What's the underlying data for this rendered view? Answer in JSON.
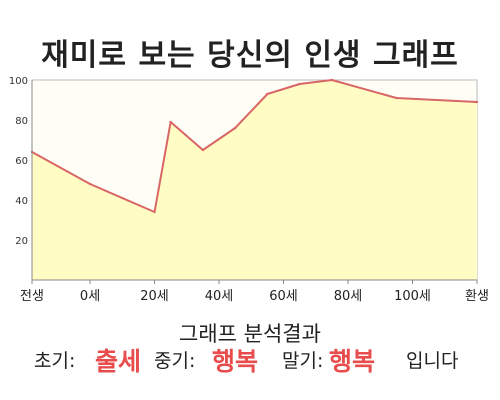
{
  "chart_data": {
    "type": "area",
    "title": "재미로 보는 당신의 인생 그래프",
    "xlabel": "",
    "ylabel": "",
    "x_tick_labels": [
      "전생",
      "0세",
      "20세",
      "40세",
      "60세",
      "80세",
      "100세",
      "환생"
    ],
    "y_ticks": [
      20,
      40,
      60,
      80,
      100
    ],
    "ylim": [
      0,
      100
    ],
    "grid": false,
    "series": [
      {
        "points": [
          {
            "x": "전생",
            "y": 64
          },
          {
            "x": "0세",
            "y": 48
          },
          {
            "x": "20세",
            "y": 34
          },
          {
            "x": "25세",
            "y": 79
          },
          {
            "x": "35세",
            "y": 65
          },
          {
            "x": "45세",
            "y": 76
          },
          {
            "x": "55세",
            "y": 93
          },
          {
            "x": "65세",
            "y": 98
          },
          {
            "x": "75세",
            "y": 100
          },
          {
            "x": "95세",
            "y": 91
          },
          {
            "x": "환생",
            "y": 89
          }
        ]
      }
    ],
    "colors": {
      "line": "#d96666",
      "fill": "#fffdc4",
      "plot_bg": "#fffef6"
    }
  },
  "summary": {
    "heading": "그래프 분석결과",
    "early_label": "초기:",
    "early_value": "출세",
    "middle_label": "중기:",
    "middle_value": "행복",
    "late_label": "말기:",
    "late_value": "행복",
    "ending": "입니다"
  }
}
